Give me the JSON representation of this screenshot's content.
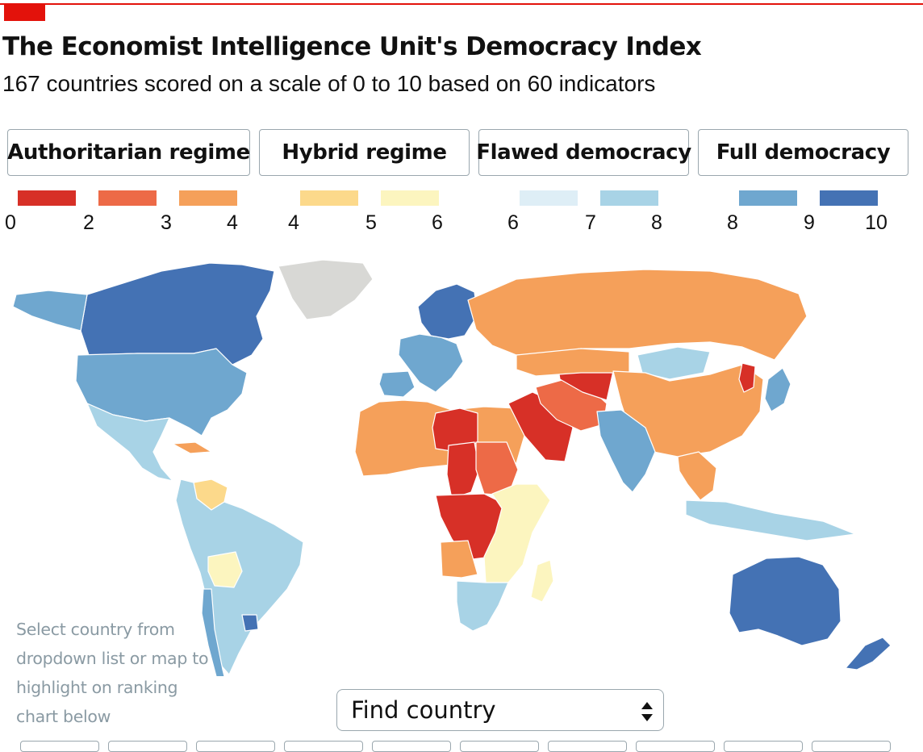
{
  "header": {
    "title": "The Economist Intelligence Unit's Democracy Index",
    "subtitle": "167 countries scored on a scale of 0 to 10 based on 60 indicators"
  },
  "legend": {
    "categories": [
      {
        "label": "Authoritarian regime"
      },
      {
        "label": "Hybrid regime"
      },
      {
        "label": "Flawed democracy"
      },
      {
        "label": "Full democracy"
      }
    ],
    "swatches": [
      {
        "from": 0,
        "to": 2,
        "color": "#d73027"
      },
      {
        "from": 2,
        "to": 3,
        "color": "#ed6a47"
      },
      {
        "from": 3,
        "to": 4,
        "color": "#f5a05a"
      },
      {
        "from": 4,
        "to": 5,
        "color": "#fcd98b"
      },
      {
        "from": 5,
        "to": 6,
        "color": "#fcf5bf"
      },
      {
        "from": 6,
        "to": 7,
        "color": "#deeef6"
      },
      {
        "from": 7,
        "to": 8,
        "color": "#a8d3e6"
      },
      {
        "from": 8,
        "to": 9,
        "color": "#6fa7cf"
      },
      {
        "from": 9,
        "to": 10,
        "color": "#4472b4"
      }
    ],
    "ticks": [
      "0",
      "2",
      "3",
      "4",
      "4",
      "5",
      "6",
      "6",
      "7",
      "8",
      "8",
      "9",
      "10"
    ]
  },
  "map": {
    "no_data_color": "#d8d8d5",
    "regions": [
      {
        "name": "Canada",
        "band": 9
      },
      {
        "name": "Greenland",
        "band": "no-data"
      },
      {
        "name": "Alaska",
        "band": 8
      },
      {
        "name": "United States",
        "band": 8
      },
      {
        "name": "Mexico",
        "band": 7
      },
      {
        "name": "Cuba",
        "band": 3
      },
      {
        "name": "Venezuela",
        "band": 4
      },
      {
        "name": "South America",
        "band": 7
      },
      {
        "name": "Bolivia",
        "band": 5
      },
      {
        "name": "Uruguay",
        "band": 9
      },
      {
        "name": "Chile",
        "band": 8
      },
      {
        "name": "Western Europe",
        "band": 8
      },
      {
        "name": "Spain",
        "band": 8
      },
      {
        "name": "Scandinavia",
        "band": 9
      },
      {
        "name": "Russia",
        "band": 3
      },
      {
        "name": "North Africa",
        "band": 3
      },
      {
        "name": "Libya",
        "band": 1
      },
      {
        "name": "Chad",
        "band": 1
      },
      {
        "name": "Sudan",
        "band": 2
      },
      {
        "name": "Central Africa",
        "band": 1
      },
      {
        "name": "Angola",
        "band": 3
      },
      {
        "name": "East Africa",
        "band": 5
      },
      {
        "name": "Southern Africa",
        "band": 7
      },
      {
        "name": "Madagascar",
        "band": 5
      },
      {
        "name": "Saudi Arabia",
        "band": 1
      },
      {
        "name": "Iran",
        "band": 2
      },
      {
        "name": "Central Asia",
        "band": 1
      },
      {
        "name": "Kazakhstan",
        "band": 3
      },
      {
        "name": "Mongolia",
        "band": 7
      },
      {
        "name": "China",
        "band": 3
      },
      {
        "name": "North Korea",
        "band": 1
      },
      {
        "name": "Japan",
        "band": 8
      },
      {
        "name": "India",
        "band": 8
      },
      {
        "name": "Southeast Asia",
        "band": 3
      },
      {
        "name": "Indonesia",
        "band": 7
      },
      {
        "name": "Australia",
        "band": 9
      },
      {
        "name": "New Zealand",
        "band": 9
      }
    ]
  },
  "hint": {
    "text": "Select country from dropdown list or map to highlight on ranking chart below"
  },
  "find": {
    "label": "Find country"
  }
}
